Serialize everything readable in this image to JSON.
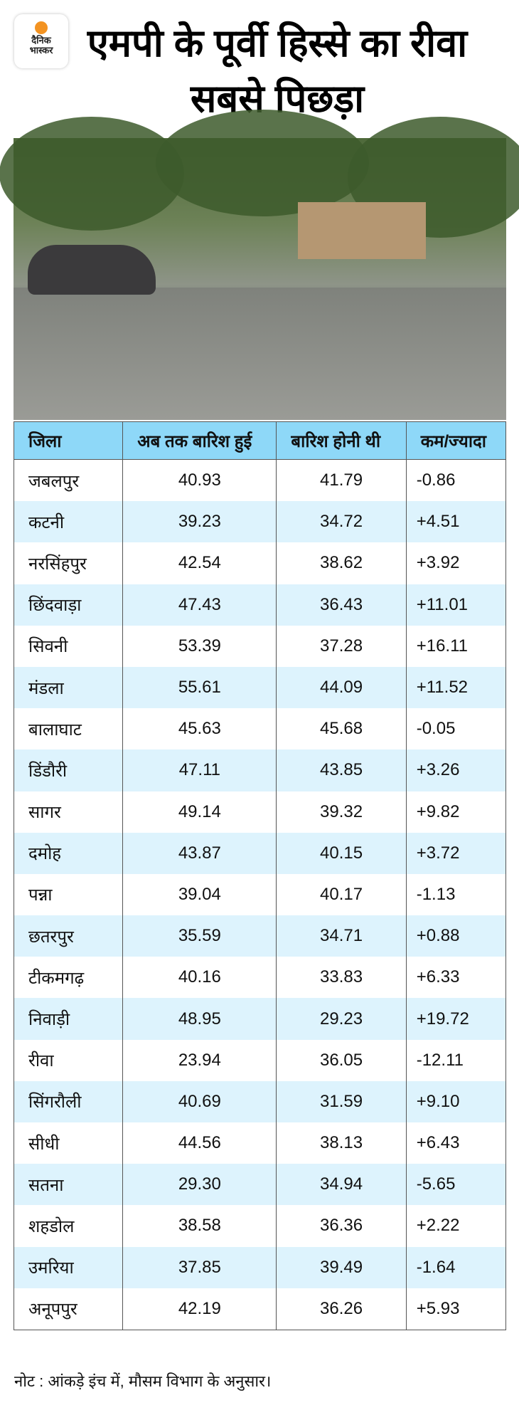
{
  "logo": {
    "line1": "दैनिक",
    "line2": "भास्कर"
  },
  "headline": "एमपी के पूर्वी हिस्से का रीवा सबसे पिछड़ा",
  "table": {
    "headers": [
      "जिला",
      "अब तक बारिश हुई",
      "बारिश होनी थी",
      "कम/ज्यादा"
    ],
    "rows": [
      [
        "जबलपुर",
        "40.93",
        "41.79",
        "-0.86"
      ],
      [
        "कटनी",
        "39.23",
        "34.72",
        "+4.51"
      ],
      [
        "नरसिंहपुर",
        "42.54",
        "38.62",
        "+3.92"
      ],
      [
        "छिंदवाड़ा",
        "47.43",
        "36.43",
        "+11.01"
      ],
      [
        "सिवनी",
        "53.39",
        "37.28",
        "+16.11"
      ],
      [
        "मंडला",
        "55.61",
        "44.09",
        "+11.52"
      ],
      [
        "बालाघाट",
        "45.63",
        "45.68",
        "-0.05"
      ],
      [
        "डिंडौरी",
        "47.11",
        "43.85",
        "+3.26"
      ],
      [
        "सागर",
        "49.14",
        "39.32",
        "+9.82"
      ],
      [
        "दमोह",
        "43.87",
        "40.15",
        "+3.72"
      ],
      [
        "पन्ना",
        "39.04",
        "40.17",
        "-1.13"
      ],
      [
        "छतरपुर",
        "35.59",
        "34.71",
        "+0.88"
      ],
      [
        "टीकमगढ़",
        "40.16",
        "33.83",
        "+6.33"
      ],
      [
        "निवाड़ी",
        "48.95",
        "29.23",
        "+19.72"
      ],
      [
        "रीवा",
        "23.94",
        "36.05",
        "-12.11"
      ],
      [
        "सिंगरौली",
        "40.69",
        "31.59",
        "+9.10"
      ],
      [
        "सीधी",
        "44.56",
        "38.13",
        "+6.43"
      ],
      [
        "सतना",
        "29.30",
        "34.94",
        "-5.65"
      ],
      [
        "शहडोल",
        "38.58",
        "36.36",
        "+2.22"
      ],
      [
        "उमरिया",
        "37.85",
        "39.49",
        "-1.64"
      ],
      [
        "अनूपपुर",
        "42.19",
        "36.26",
        "+5.93"
      ]
    ]
  },
  "note": "नोट : आंकड़े इंच में, मौसम  विभाग के अनुसार।",
  "colors": {
    "header_bg": "#8ed8f8",
    "alt_row_bg": "#ddf3fd",
    "logo_sun": "#f39322"
  }
}
